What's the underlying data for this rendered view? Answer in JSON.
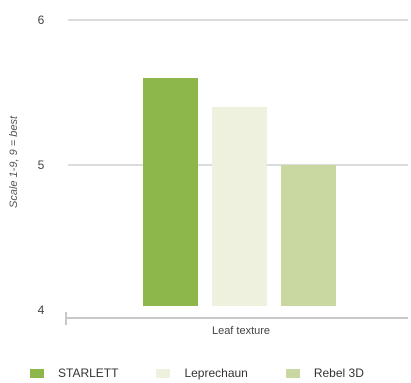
{
  "chart_data": {
    "type": "bar",
    "categories": [
      "Leaf texture"
    ],
    "series": [
      {
        "name": "STARLETT",
        "values": [
          5.6
        ],
        "color": "#8db64b"
      },
      {
        "name": "Leprechaun",
        "values": [
          5.4
        ],
        "color": "#edf1dd"
      },
      {
        "name": "Rebel 3D",
        "values": [
          5.0
        ],
        "color": "#c9d7a1"
      }
    ],
    "ylabel": "Scale 1-9, 9 = best",
    "ylim": [
      4,
      6
    ],
    "yticks": [
      4,
      5,
      6
    ],
    "grid": true,
    "legend_position": "bottom"
  }
}
